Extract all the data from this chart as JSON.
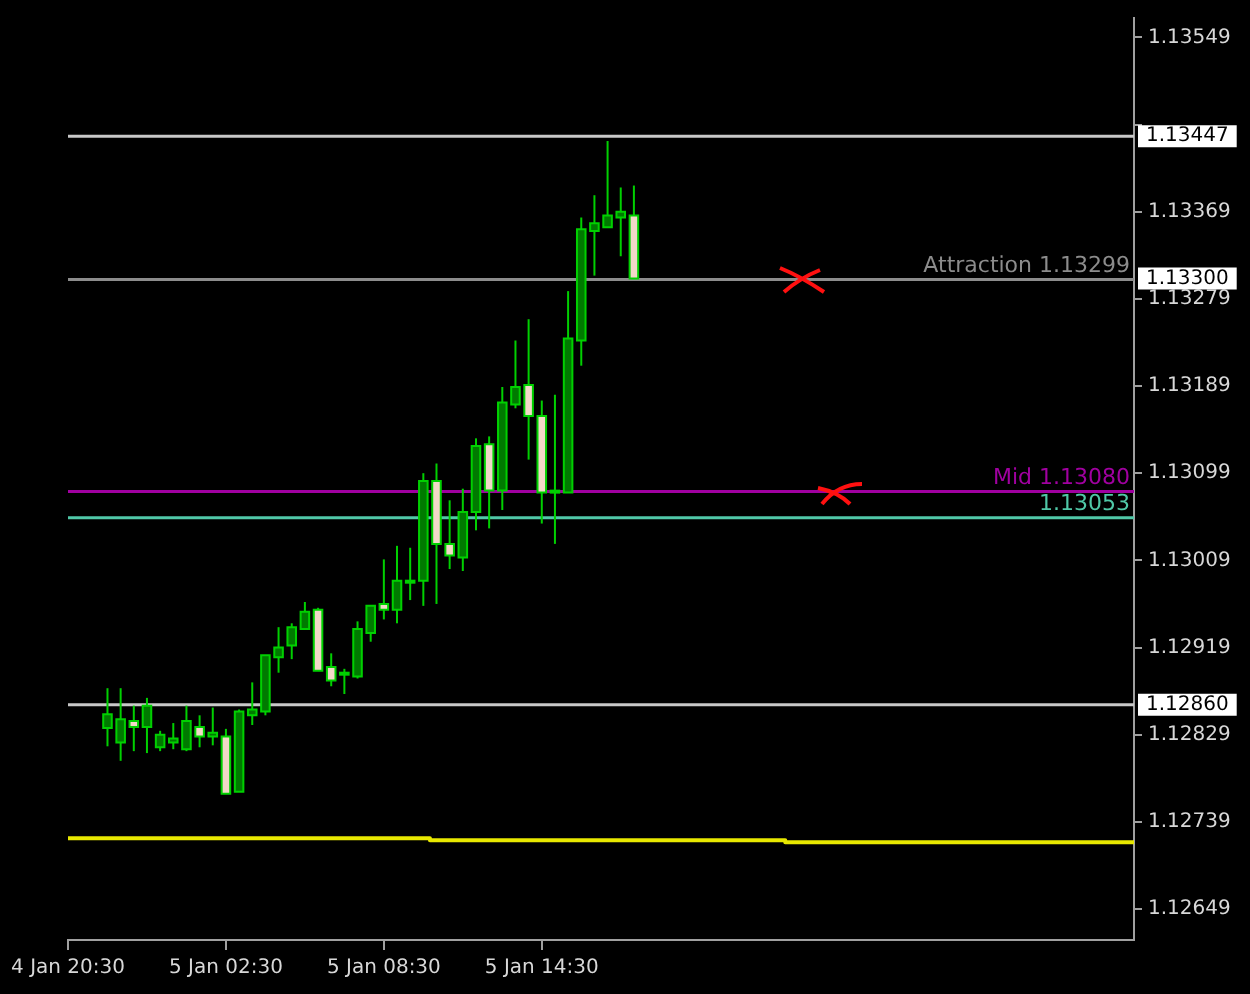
{
  "chart_data": {
    "type": "candlestick",
    "categories": [
      "4 Jan 20:30",
      null,
      null,
      null,
      null,
      null,
      null,
      null,
      null,
      null,
      null,
      null,
      "5 Jan 02:30",
      null,
      null,
      null,
      null,
      null,
      null,
      null,
      null,
      null,
      null,
      null,
      "5 Jan 08:30",
      null,
      null,
      null,
      null,
      null,
      null,
      null,
      null,
      null,
      null,
      null,
      "5 Jan 14:30",
      null,
      null,
      null,
      null,
      null,
      null,
      null,
      null,
      null,
      null,
      null,
      null,
      null,
      null,
      null,
      null,
      null,
      null,
      null,
      null,
      null,
      null,
      null,
      null,
      null,
      null,
      null,
      null,
      null,
      null,
      null,
      null,
      null,
      null,
      null,
      null,
      null,
      null,
      null,
      null,
      null,
      null,
      null,
      null,
      null
    ],
    "ohlc": [
      null,
      null,
      null,
      [
        1.12836,
        1.12877,
        1.12817,
        1.1285
      ],
      [
        1.12821,
        1.12877,
        1.12802,
        1.12845
      ],
      [
        1.12843,
        1.12859,
        1.12812,
        1.12837
      ],
      [
        1.12837,
        1.12867,
        1.1281,
        1.12859
      ],
      [
        1.12816,
        1.12833,
        1.12812,
        1.12829
      ],
      [
        1.12821,
        1.12841,
        1.12814,
        1.12825
      ],
      [
        1.12814,
        1.12859,
        1.12812,
        1.12843
      ],
      [
        1.12837,
        1.12849,
        1.12816,
        1.12827
      ],
      [
        1.12827,
        1.12857,
        1.12818,
        1.12831
      ],
      [
        1.12827,
        1.12835,
        1.12768,
        1.12768
      ],
      [
        1.1277,
        1.12855,
        1.1277,
        1.12853
      ],
      [
        1.12849,
        1.12883,
        1.12839,
        1.12855
      ],
      [
        1.12853,
        1.12911,
        1.12849,
        1.12911
      ],
      [
        1.12909,
        1.1294,
        1.12893,
        1.12919
      ],
      [
        1.12921,
        1.12944,
        1.12907,
        1.1294
      ],
      [
        1.12938,
        1.12966,
        1.12938,
        1.12956
      ],
      [
        1.12958,
        1.1296,
        1.12895,
        1.12895
      ],
      [
        1.12899,
        1.12913,
        1.12879,
        1.12885
      ],
      [
        1.12891,
        1.12897,
        1.12871,
        1.12893
      ],
      [
        1.12889,
        1.12946,
        1.12887,
        1.12938
      ],
      [
        1.12934,
        1.12962,
        1.12925,
        1.12962
      ],
      [
        1.12964,
        1.1301,
        1.12948,
        1.12958
      ],
      [
        1.12958,
        1.13024,
        1.12944,
        1.12988
      ],
      [
        1.12986,
        1.13022,
        1.12968,
        1.12988
      ],
      [
        1.12988,
        1.13099,
        1.12962,
        1.13091
      ],
      [
        1.13091,
        1.13109,
        1.12964,
        1.13026
      ],
      [
        1.13026,
        1.13071,
        1.13,
        1.13014
      ],
      [
        1.13012,
        1.13083,
        1.12998,
        1.13059
      ],
      [
        1.13059,
        1.13135,
        1.1304,
        1.13127
      ],
      [
        1.13129,
        1.13137,
        1.13042,
        1.13081
      ],
      [
        1.13081,
        1.13188,
        1.13061,
        1.13172
      ],
      [
        1.1317,
        1.13236,
        1.13166,
        1.13188
      ],
      [
        1.1319,
        1.13258,
        1.13113,
        1.13158
      ],
      [
        1.13158,
        1.13174,
        1.13047,
        1.13079
      ],
      [
        1.13079,
        1.1318,
        1.13026,
        1.13081
      ],
      [
        1.13079,
        1.13287,
        1.13079,
        1.13238
      ],
      [
        1.13236,
        1.13363,
        1.1321,
        1.13351
      ],
      [
        1.13349,
        1.13386,
        1.13303,
        1.13357
      ],
      [
        1.13353,
        1.13442,
        1.13353,
        1.13365
      ],
      [
        1.13363,
        1.13394,
        1.13323,
        1.13369
      ],
      [
        1.13365,
        1.13396,
        1.133,
        1.133
      ],
      null,
      null,
      null,
      null,
      null,
      null,
      null,
      null,
      null,
      null,
      null,
      null,
      null,
      null,
      null,
      null,
      null,
      null,
      null,
      null,
      null,
      null,
      null,
      null,
      null,
      null,
      null,
      null,
      null,
      null,
      null,
      null,
      null,
      null,
      null,
      null,
      null,
      null
    ],
    "series": [
      {
        "type": "step",
        "color": "#e8e800",
        "values": [
          1.12722,
          1.12722,
          1.12722,
          1.12722,
          1.12722,
          1.12722,
          1.12722,
          1.12722,
          1.12722,
          1.12722,
          1.12722,
          1.12722,
          1.12722,
          1.12722,
          1.12722,
          1.12722,
          1.12722,
          1.12722,
          1.12722,
          1.12722,
          1.12722,
          1.12722,
          1.12722,
          1.12722,
          1.12722,
          1.12722,
          1.12722,
          1.12722,
          1.1272,
          1.1272,
          1.1272,
          1.1272,
          1.1272,
          1.1272,
          1.1272,
          1.1272,
          1.1272,
          1.1272,
          1.1272,
          1.1272,
          1.1272,
          1.1272,
          1.1272,
          1.1272,
          1.1272,
          1.1272,
          1.1272,
          1.1272,
          1.1272,
          1.1272,
          1.1272,
          1.1272,
          1.1272,
          1.1272,
          1.1272,
          1.12718,
          1.12718,
          1.12718,
          1.12718,
          1.12718,
          1.12718,
          1.12718,
          1.12718,
          1.12718,
          1.12718,
          1.12718,
          1.12718,
          1.12718,
          1.12718,
          1.12718,
          1.12718,
          1.12718,
          1.12718,
          1.12718,
          1.12718,
          1.12718,
          1.12718,
          1.12718,
          1.12718,
          1.12718,
          1.12718,
          1.12718
        ]
      }
    ],
    "ylim": [
      1.12617,
      1.13569
    ],
    "yticks": [
      1.13549,
      {
        "value": 1.13459,
        "label": null
      },
      1.13369,
      1.13279,
      1.13189,
      1.13099,
      1.13009,
      1.12919,
      1.12829,
      1.12739,
      1.12649
    ],
    "y2lim": [
      1.12617,
      1.13569
    ],
    "y2ticks": [
      {
        "value": 1.13447,
        "label": "1.13447"
      },
      {
        "value": 1.133,
        "label": "1.13300"
      },
      {
        "value": 1.1286,
        "label": "1.12860"
      }
    ],
    "ref_lines": [
      {
        "axis": "y",
        "value": 1.13447,
        "color": "#c8c8c8"
      },
      {
        "axis": "y",
        "value": 1.13299,
        "label": "Attraction 1.13299",
        "color": "#8c8c8c"
      },
      {
        "axis": "y",
        "value": 1.1308,
        "label": "Mid 1.13080",
        "color": "#a000a0"
      },
      {
        "axis": "y",
        "value": 1.13053,
        "label": "1.13053",
        "color": "#50c8a8"
      },
      {
        "axis": "y",
        "value": 1.1286,
        "color": "#c8c8c8"
      }
    ],
    "grid": false,
    "legend": false
  }
}
